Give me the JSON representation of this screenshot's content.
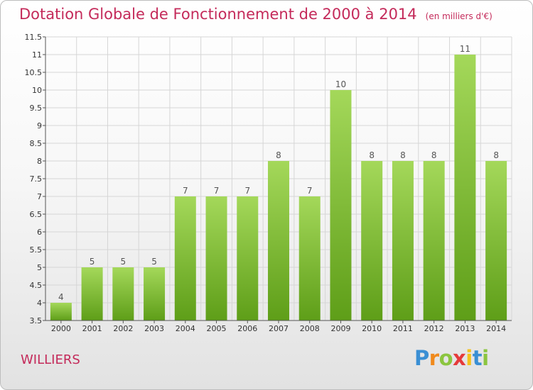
{
  "title": "Dotation Globale de Fonctionnement de 2000 à 2014",
  "subtitle": "(en milliers d'€)",
  "commune": "WILLIERS",
  "logo": {
    "letters": [
      "P",
      "r",
      "o",
      "x",
      "i",
      "t",
      "i"
    ],
    "colors": [
      "#3a8fd4",
      "#f08a1c",
      "#8bc53f",
      "#e53a3a",
      "#f4c21c",
      "#3a8fd4",
      "#8bc53f"
    ]
  },
  "colors": {
    "bar_light": "#a4d85a",
    "bar_dark": "#5e9e18",
    "title": "#c42a5a",
    "grid": "#d6d6d6"
  },
  "chart_data": {
    "type": "bar",
    "title": "Dotation Globale de Fonctionnement de 2000 à 2014",
    "subtitle": "(en milliers d'€)",
    "categories": [
      "2000",
      "2001",
      "2002",
      "2003",
      "2004",
      "2005",
      "2006",
      "2007",
      "2008",
      "2009",
      "2010",
      "2011",
      "2012",
      "2013",
      "2014"
    ],
    "values": [
      4,
      5,
      5,
      5,
      7,
      7,
      7,
      8,
      7,
      10,
      8,
      8,
      8,
      11,
      8
    ],
    "ylim": [
      3.5,
      11.5
    ],
    "yticks": [
      "3.5",
      "4",
      "4.5",
      "5",
      "5.5",
      "6",
      "6.5",
      "7",
      "7.5",
      "8",
      "8.5",
      "9",
      "9.5",
      "10",
      "10.5",
      "11",
      "11.5"
    ],
    "grid": true
  }
}
